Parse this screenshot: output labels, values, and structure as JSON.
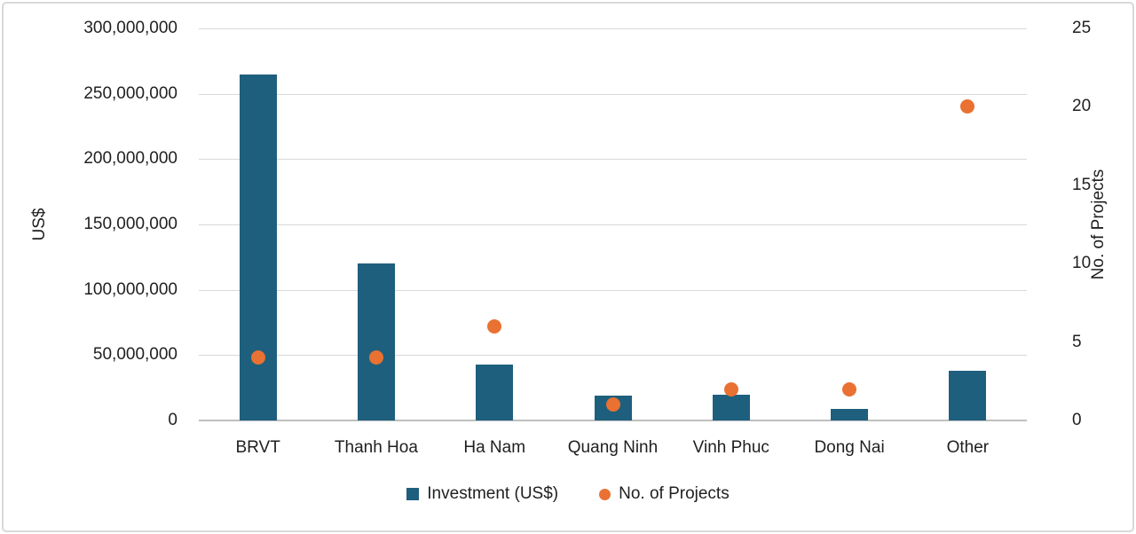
{
  "chart_data": {
    "type": "combo",
    "title": "",
    "categories": [
      "BRVT",
      "Thanh Hoa",
      "Ha Nam",
      "Quang Ninh",
      "Vinh Phuc",
      "Dong Nai",
      "Other"
    ],
    "series": [
      {
        "name": "Investment (US$)",
        "type": "bar",
        "axis": "left",
        "color": "#1E5F7E",
        "values": [
          265000000,
          120000000,
          43000000,
          19000000,
          20000000,
          9000000,
          38000000
        ]
      },
      {
        "name": "No. of Projects",
        "type": "scatter",
        "axis": "right",
        "color": "#E97132",
        "values": [
          4,
          4,
          6,
          1,
          2,
          2,
          20
        ]
      }
    ],
    "left_axis": {
      "title": "US$",
      "min": 0,
      "max": 300000000,
      "step": 50000000,
      "tick_labels": [
        "0",
        "50,000,000",
        "100,000,000",
        "150,000,000",
        "200,000,000",
        "250,000,000",
        "300,000,000"
      ]
    },
    "right_axis": {
      "title": "No. of Projects",
      "min": 0,
      "max": 25,
      "step": 5,
      "tick_labels": [
        "0",
        "5",
        "10",
        "15",
        "20",
        "25"
      ]
    },
    "grid": true,
    "legend_position": "bottom"
  },
  "legend": {
    "items": [
      {
        "label": "Investment (US$)",
        "marker": "square",
        "color": "#1E5F7E"
      },
      {
        "label": "No. of Projects",
        "marker": "circle",
        "color": "#E97132"
      }
    ]
  },
  "colors": {
    "bar": "#1E5F7E",
    "dot": "#E97132",
    "gridline": "#D9D9D9",
    "axis_line": "#BFBFBF",
    "text": "#1F1F1F",
    "border": "#D9D9D9",
    "background": "#FFFFFF"
  }
}
